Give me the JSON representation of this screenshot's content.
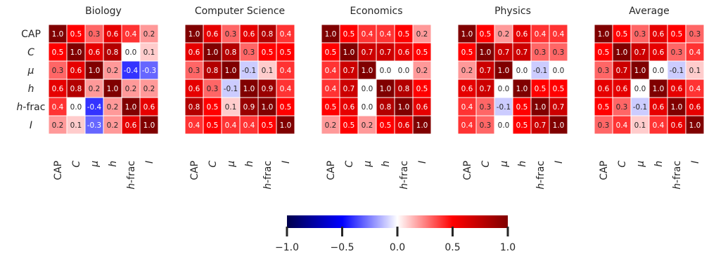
{
  "chart_data": {
    "type": "heatmap",
    "row_labels": [
      "CAP",
      "C",
      "μ",
      "h",
      "h-frac",
      "I"
    ],
    "col_labels": [
      "CAP",
      "C",
      "μ",
      "h",
      "h-frac",
      "I"
    ],
    "panels": [
      {
        "title": "Biology",
        "values": [
          [
            1.0,
            0.5,
            0.3,
            0.6,
            0.4,
            0.2
          ],
          [
            0.5,
            1.0,
            0.6,
            0.8,
            -0.0,
            0.1
          ],
          [
            0.3,
            0.6,
            1.0,
            0.2,
            -0.4,
            -0.3
          ],
          [
            0.6,
            0.8,
            0.2,
            1.0,
            0.2,
            0.2
          ],
          [
            0.4,
            -0.0,
            -0.4,
            0.2,
            1.0,
            0.6
          ],
          [
            0.2,
            0.1,
            -0.3,
            0.2,
            0.6,
            1.0
          ]
        ]
      },
      {
        "title": "Computer Science",
        "values": [
          [
            1.0,
            0.6,
            0.3,
            0.6,
            0.8,
            0.4
          ],
          [
            0.6,
            1.0,
            0.8,
            0.3,
            0.5,
            0.5
          ],
          [
            0.3,
            0.8,
            1.0,
            -0.1,
            0.1,
            0.4
          ],
          [
            0.6,
            0.3,
            -0.1,
            1.0,
            0.9,
            0.4
          ],
          [
            0.8,
            0.5,
            0.1,
            0.9,
            1.0,
            0.5
          ],
          [
            0.4,
            0.5,
            0.4,
            0.4,
            0.5,
            1.0
          ]
        ]
      },
      {
        "title": "Economics",
        "values": [
          [
            1.0,
            0.5,
            0.4,
            0.4,
            0.5,
            0.2
          ],
          [
            0.5,
            1.0,
            0.7,
            0.7,
            0.6,
            0.5
          ],
          [
            0.4,
            0.7,
            1.0,
            0.0,
            0.0,
            0.2
          ],
          [
            0.4,
            0.7,
            0.0,
            1.0,
            0.8,
            0.5
          ],
          [
            0.5,
            0.6,
            0.0,
            0.8,
            1.0,
            0.6
          ],
          [
            0.2,
            0.5,
            0.2,
            0.5,
            0.6,
            1.0
          ]
        ]
      },
      {
        "title": "Physics",
        "values": [
          [
            1.0,
            0.5,
            0.2,
            0.6,
            0.4,
            0.4
          ],
          [
            0.5,
            1.0,
            0.7,
            0.7,
            0.3,
            0.3
          ],
          [
            0.2,
            0.7,
            1.0,
            0.0,
            -0.1,
            -0.0
          ],
          [
            0.6,
            0.7,
            0.0,
            1.0,
            0.5,
            0.5
          ],
          [
            0.4,
            0.3,
            -0.1,
            0.5,
            1.0,
            0.7
          ],
          [
            0.4,
            0.3,
            -0.0,
            0.5,
            0.7,
            1.0
          ]
        ]
      },
      {
        "title": "Average",
        "values": [
          [
            1.0,
            0.5,
            0.3,
            0.6,
            0.5,
            0.3
          ],
          [
            0.5,
            1.0,
            0.7,
            0.6,
            0.3,
            0.4
          ],
          [
            0.3,
            0.7,
            1.0,
            0.0,
            -0.1,
            0.1
          ],
          [
            0.6,
            0.6,
            0.0,
            1.0,
            0.6,
            0.4
          ],
          [
            0.5,
            0.3,
            -0.1,
            0.6,
            1.0,
            0.6
          ],
          [
            0.3,
            0.4,
            0.1,
            0.4,
            0.6,
            1.0
          ]
        ]
      }
    ],
    "colorbar": {
      "colormap": "seismic",
      "range": [
        -1.0,
        1.0
      ],
      "ticks": [
        -1.0,
        -0.5,
        0.0,
        0.5,
        1.0
      ],
      "tick_labels": [
        "−1.0",
        "−0.5",
        "0.0",
        "0.5",
        "1.0"
      ],
      "placement": "bottom-center"
    }
  }
}
